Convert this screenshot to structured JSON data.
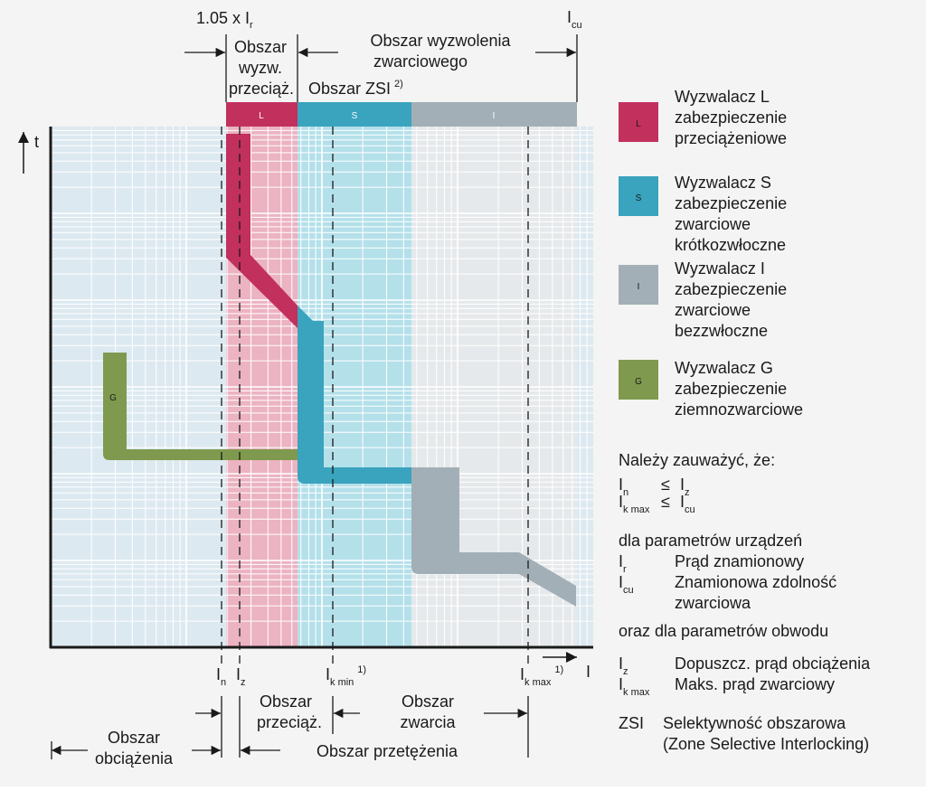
{
  "top": {
    "i105_main": "1.05 x I",
    "i105_sub": "r",
    "zone_overload_l1": "Obszar",
    "zone_overload_l2": "wyzw.",
    "zone_overload_l3": "przeciąż.",
    "zone_shortcircuit_l1": "Obszar wyzwolenia",
    "zone_shortcircuit_l2": "zwarciowego",
    "zsi_label": "Obszar ZSI",
    "zsi_sup": "2)",
    "icu_main": "I",
    "icu_sub": "cu",
    "band_L": "L",
    "band_S": "S",
    "band_I": "I"
  },
  "axes": {
    "t_label": "t",
    "i_label": "I",
    "G_label": "G"
  },
  "bottom": {
    "in_main": "I",
    "in_sub": "n",
    "iz_main": "I",
    "iz_sub": "z",
    "ikmin_main": "I",
    "ikmin_sub": "k min",
    "ikmin_sup": "1)",
    "ikmax_main": "I",
    "ikmax_sub": "k max",
    "ikmax_sup": "1)",
    "overload_l1": "Obszar",
    "overload_l2": "przeciąż.",
    "shortcircuit_l1": "Obszar",
    "shortcircuit_l2": "zwarcia",
    "load_l1": "Obszar",
    "load_l2": "obciążenia",
    "overcurrent": "Obszar przetężenia"
  },
  "legend": [
    {
      "key": "L",
      "color": "#c2305e",
      "lines": [
        "Wyzwalacz L",
        "zabezpieczenie",
        "przeciążeniowe"
      ]
    },
    {
      "key": "S",
      "color": "#3aa3bd",
      "lines": [
        "Wyzwalacz S",
        "zabezpieczenie",
        "zwarciowe",
        "krótkozwłoczne"
      ]
    },
    {
      "key": "I",
      "color": "#a2afb7",
      "lines": [
        "Wyzwalacz I",
        "zabezpieczenie",
        "zwarciowe",
        "bezzwłoczne"
      ]
    },
    {
      "key": "G",
      "color": "#7f9a4e",
      "lines": [
        "Wyzwalacz G",
        "zabezpieczenie",
        "ziemnozwarciowe"
      ]
    }
  ],
  "notes": {
    "heading": "Należy zauważyć, że:",
    "rel1": {
      "a": "I",
      "a_sub": "n",
      "op": "≤",
      "b": "I",
      "b_sub": "z"
    },
    "rel2": {
      "a": "I",
      "a_sub": "k max",
      "op": "≤",
      "b": "I",
      "b_sub": "cu"
    },
    "device_heading": "dla parametrów urządzeń",
    "device_items": [
      {
        "sym": "I",
        "sub": "r",
        "lines": [
          "Prąd znamionowy"
        ]
      },
      {
        "sym": "I",
        "sub": "cu",
        "lines": [
          "Znamionowa zdolność",
          "zwarciowa"
        ]
      }
    ],
    "circuit_heading": "oraz dla parametrów obwodu",
    "circuit_items": [
      {
        "sym": "I",
        "sub": "z",
        "lines": [
          "Dopuszcz. prąd obciążenia"
        ]
      },
      {
        "sym": "I",
        "sub": "k max",
        "lines": [
          "Maks. prąd zwarciowy"
        ]
      }
    ],
    "zsi": {
      "sym": "ZSI",
      "lines": [
        "Selektywność obszarowa",
        "(Zone Selective Interlocking)"
      ]
    }
  }
}
